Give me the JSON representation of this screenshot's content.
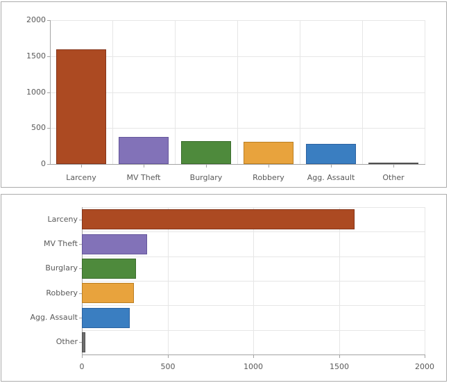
{
  "app": {
    "description": "Crime category charts: column chart (top) and horizontal bar chart (bottom)"
  },
  "colors": {
    "background": "#FFFFFF",
    "panel_border": "#ABABAB",
    "grid": "#E6E6E6",
    "axis": "#A3A3A3",
    "text": "#595959"
  },
  "chart_data": [
    {
      "type": "bar",
      "orientation": "vertical",
      "title": "",
      "xlabel": "",
      "ylabel": "",
      "categories": [
        "Larceny",
        "MV Theft",
        "Burglary",
        "Robbery",
        "Agg. Assault",
        "Other"
      ],
      "values": [
        1590,
        380,
        315,
        305,
        280,
        20
      ],
      "ylim": [
        0,
        2000
      ],
      "yticks": [
        0,
        500,
        1000,
        1500,
        2000
      ],
      "grid": true,
      "legend": false,
      "bar_fill_colors": [
        "#AC4A22",
        "#8272B8",
        "#4E8A3C",
        "#E8A33D",
        "#3A7EC1",
        "#6E6E6E"
      ],
      "bar_stroke_colors": [
        "#84351B",
        "#64569B",
        "#3A6C2C",
        "#BA7E22",
        "#2B62A1",
        "#4F4F4F"
      ]
    },
    {
      "type": "bar",
      "orientation": "horizontal",
      "title": "",
      "xlabel": "",
      "ylabel": "",
      "categories": [
        "Larceny",
        "MV Theft",
        "Burglary",
        "Robbery",
        "Agg. Assault",
        "Other"
      ],
      "values": [
        1590,
        380,
        315,
        305,
        280,
        20
      ],
      "xlim": [
        0,
        2000
      ],
      "xticks": [
        0,
        500,
        1000,
        1500,
        2000
      ],
      "grid": true,
      "legend": false,
      "bar_fill_colors": [
        "#AC4A22",
        "#8272B8",
        "#4E8A3C",
        "#E8A33D",
        "#3A7EC1",
        "#6E6E6E"
      ],
      "bar_stroke_colors": [
        "#84351B",
        "#64569B",
        "#3A6C2C",
        "#BA7E22",
        "#2B62A1",
        "#4F4F4F"
      ]
    }
  ]
}
